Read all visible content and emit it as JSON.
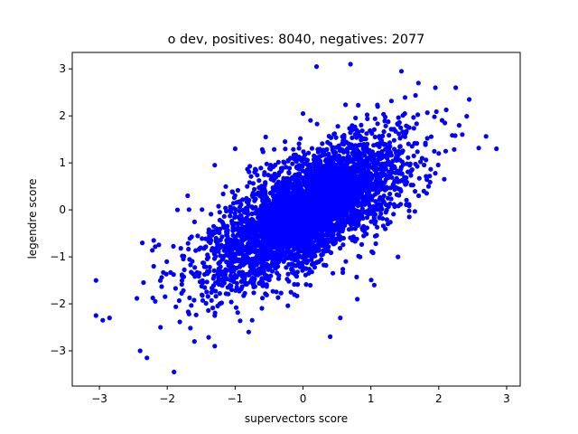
{
  "chart_data": {
    "type": "scatter",
    "title": "o dev, positives: 8040, negatives: 2077",
    "xlabel": "supervectors score",
    "ylabel": "legendre score",
    "xlim": [
      -3.4,
      3.2
    ],
    "ylim": [
      -3.75,
      3.35
    ],
    "xticks": [
      -3,
      -2,
      -1,
      0,
      1,
      2,
      3
    ],
    "yticks": [
      -3,
      -2,
      -1,
      0,
      1,
      2,
      3
    ],
    "grid": false,
    "legend": "none",
    "color": "#0000ff",
    "approx_correlation": 0.68,
    "cloud_center": [
      0.05,
      0.0
    ],
    "cloud_std": [
      0.7,
      0.75
    ],
    "points": [
      [
        -3.05,
        -1.5
      ],
      [
        -3.05,
        -2.25
      ],
      [
        -2.95,
        -2.35
      ],
      [
        -2.85,
        -2.3
      ],
      [
        -2.4,
        -3.0
      ],
      [
        -2.3,
        -3.15
      ],
      [
        -1.9,
        -3.45
      ],
      [
        -2.1,
        -2.5
      ],
      [
        -2.2,
        -1.2
      ],
      [
        -2.2,
        -0.65
      ],
      [
        -1.6,
        -2.8
      ],
      [
        -1.3,
        -2.9
      ],
      [
        -1.3,
        -2.25
      ],
      [
        -0.8,
        -2.6
      ],
      [
        -0.75,
        -2.35
      ],
      [
        0.4,
        -2.7
      ],
      [
        0.55,
        -2.3
      ],
      [
        0.2,
        3.05
      ],
      [
        0.7,
        3.1
      ],
      [
        1.45,
        2.95
      ],
      [
        1.7,
        2.7
      ],
      [
        1.95,
        2.6
      ],
      [
        2.25,
        2.6
      ],
      [
        2.45,
        2.35
      ],
      [
        2.85,
        1.3
      ],
      [
        2.3,
        1.8
      ],
      [
        -1.85,
        0.0
      ],
      [
        -1.7,
        0.3
      ],
      [
        -1.3,
        0.95
      ],
      [
        -1.0,
        1.3
      ],
      [
        -0.55,
        1.55
      ],
      [
        0.0,
        2.05
      ],
      [
        1.1,
        2.2
      ],
      [
        1.5,
        2.05
      ],
      [
        2.0,
        1.2
      ],
      [
        1.85,
        0.5
      ],
      [
        1.25,
        -0.3
      ],
      [
        1.4,
        -1.0
      ],
      [
        1.05,
        -1.6
      ],
      [
        0.8,
        -1.9
      ]
    ]
  }
}
